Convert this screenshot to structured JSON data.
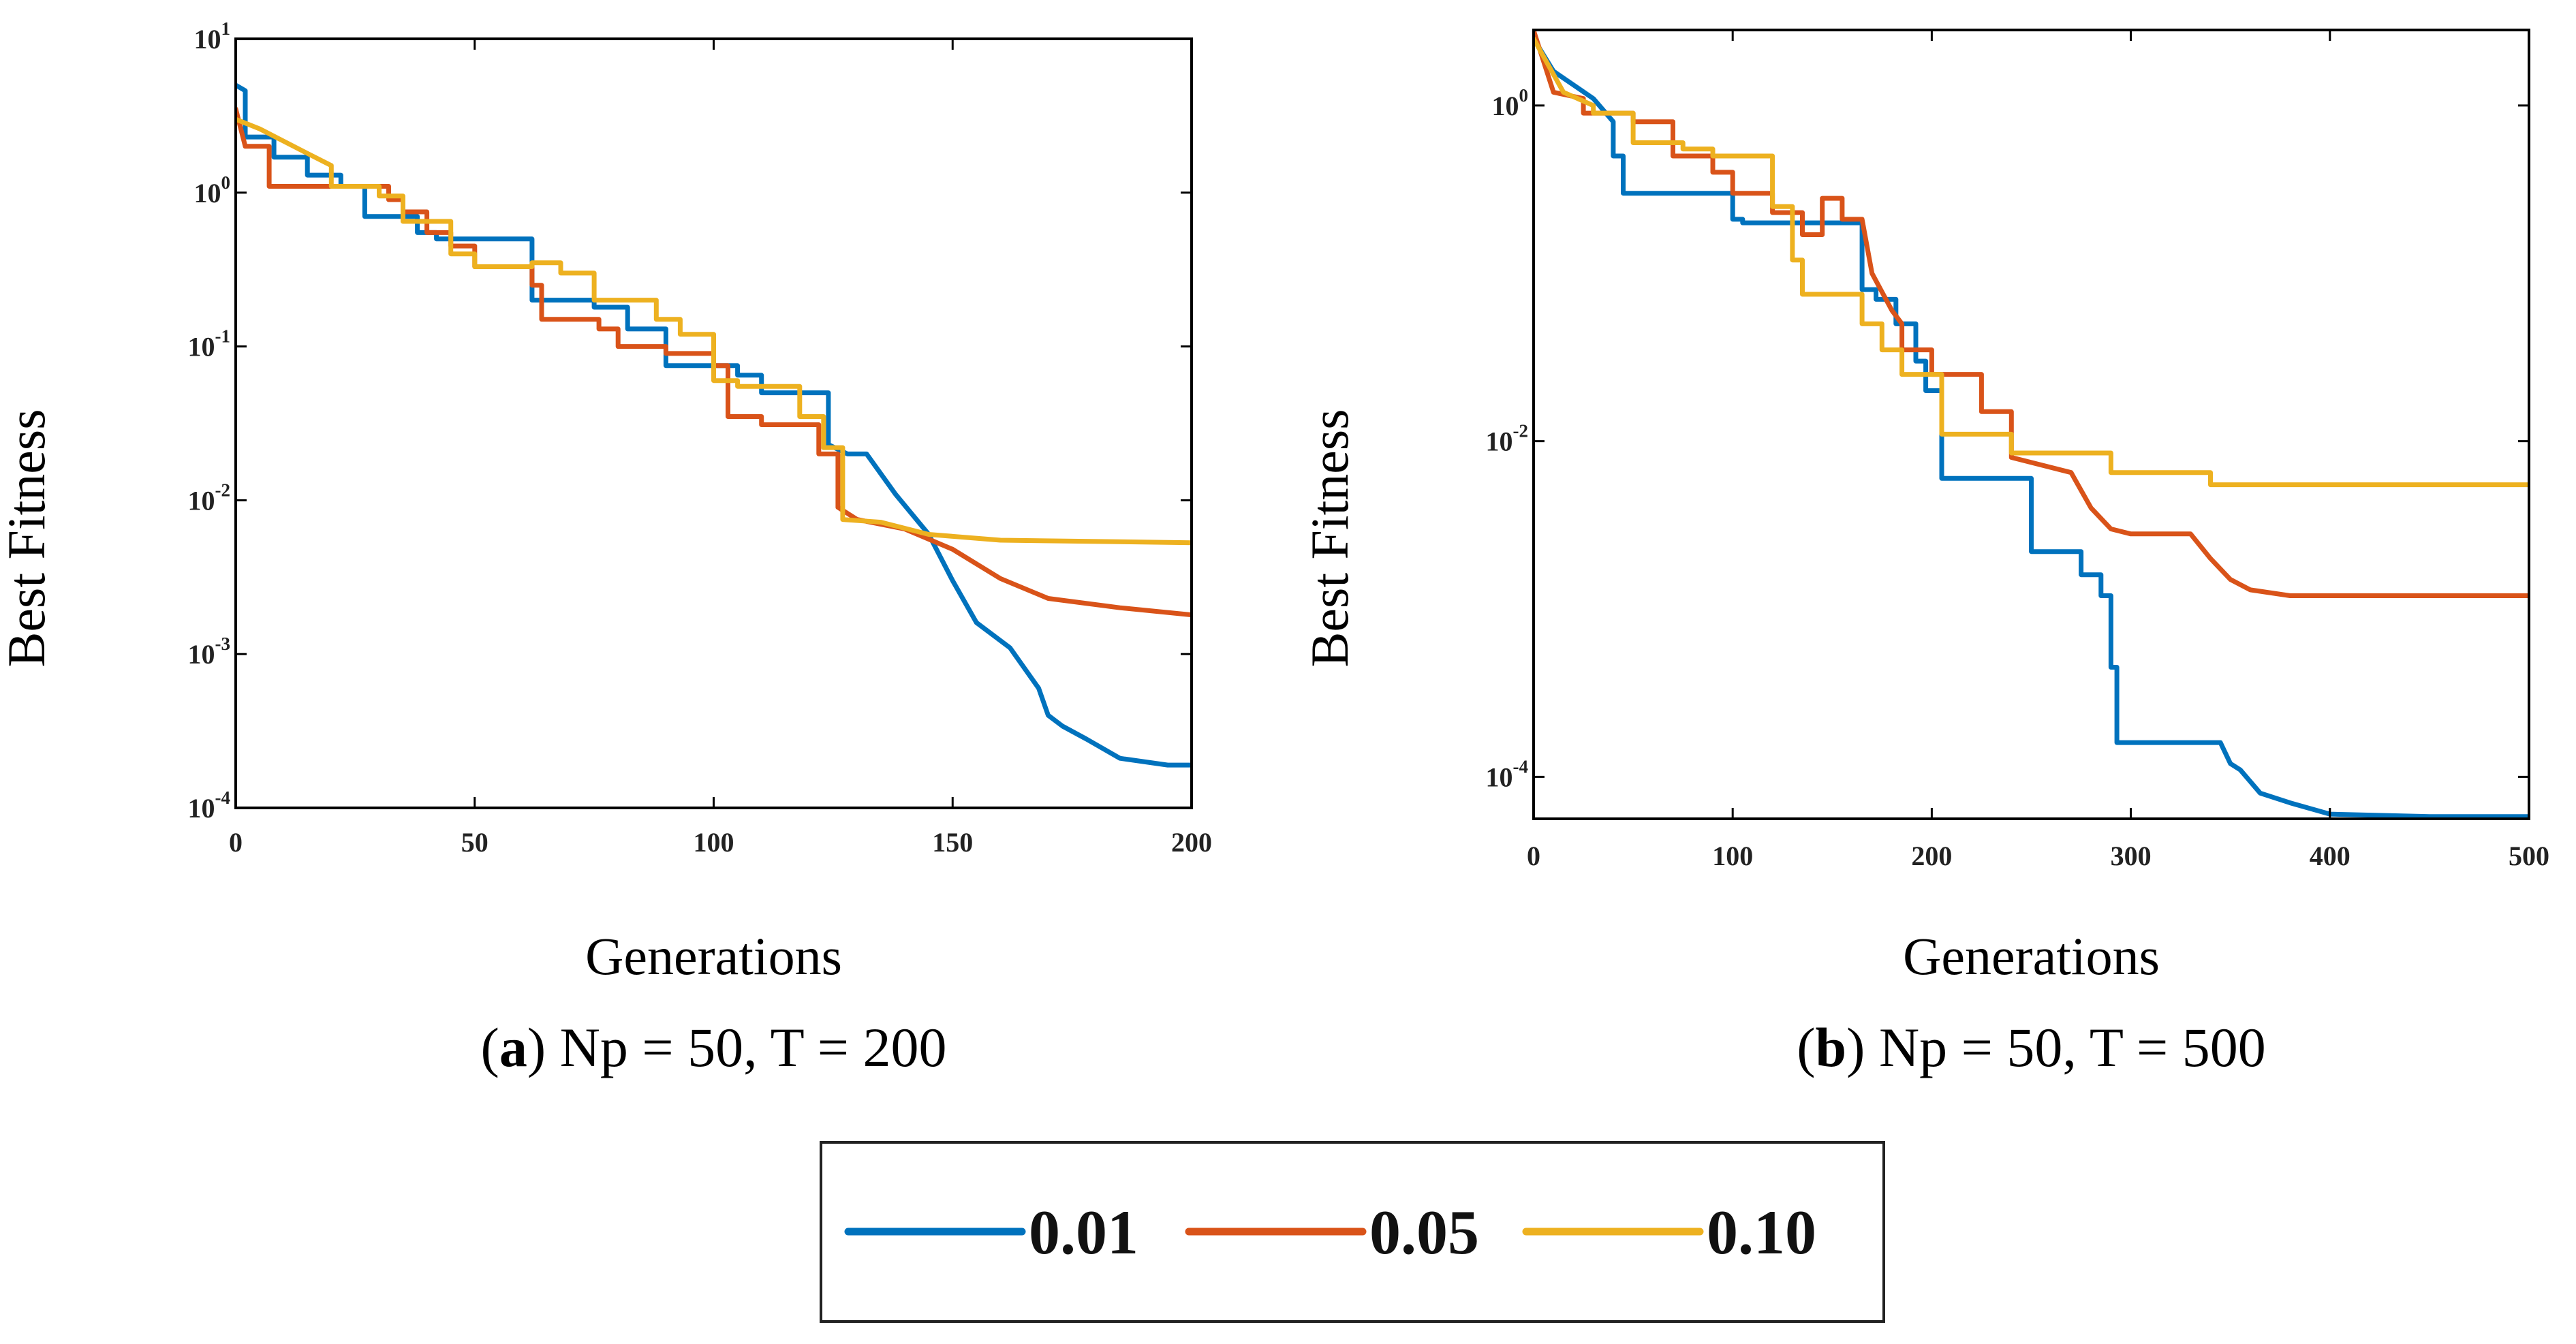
{
  "chart_data": [
    {
      "type": "line",
      "caption_letter": "a",
      "caption_rest": ") Np = 50, T = 200",
      "xlabel": "Generations",
      "ylabel": "Best Fitness",
      "xlim": [
        0,
        200
      ],
      "ylim_log10": [
        -4,
        1
      ],
      "yscale": "log",
      "xticks": [
        0,
        50,
        100,
        150,
        200
      ],
      "yticks_exp": [
        1,
        0,
        -1,
        -2,
        -3,
        -4
      ],
      "series": [
        {
          "name": "0.01",
          "color": "#0072BD",
          "x": [
            0,
            2,
            2,
            8,
            8,
            15,
            15,
            22,
            22,
            27,
            27,
            38,
            38,
            42,
            42,
            48,
            48,
            62,
            62,
            66,
            66,
            75,
            75,
            82,
            82,
            90,
            90,
            97,
            97,
            105,
            105,
            110,
            110,
            120,
            120,
            124,
            124,
            128,
            132,
            138,
            145,
            150,
            155,
            162,
            168,
            170,
            173,
            178,
            185,
            195,
            200
          ],
          "y": [
            5,
            4.6,
            2.3,
            2.3,
            1.7,
            1.7,
            1.3,
            1.3,
            1.1,
            1.1,
            0.7,
            0.7,
            0.55,
            0.55,
            0.5,
            0.5,
            0.5,
            0.5,
            0.2,
            0.2,
            0.2,
            0.2,
            0.18,
            0.18,
            0.13,
            0.13,
            0.075,
            0.075,
            0.075,
            0.075,
            0.065,
            0.065,
            0.05,
            0.05,
            0.05,
            0.05,
            0.023,
            0.02,
            0.02,
            0.011,
            0.006,
            0.003,
            0.0016,
            0.0011,
            0.0006,
            0.0004,
            0.00034,
            0.00028,
            0.00021,
            0.00019,
            0.00019
          ]
        },
        {
          "name": "0.05",
          "color": "#D95319",
          "x": [
            0,
            2,
            2,
            7,
            7,
            32,
            32,
            35,
            35,
            40,
            40,
            45,
            45,
            50,
            50,
            62,
            62,
            64,
            64,
            76,
            76,
            80,
            80,
            90,
            90,
            100,
            100,
            103,
            103,
            110,
            110,
            122,
            122,
            126,
            126,
            130,
            140,
            150,
            160,
            170,
            185,
            200
          ],
          "y": [
            3.5,
            2,
            2,
            2,
            1.1,
            1.1,
            0.9,
            0.9,
            0.75,
            0.75,
            0.55,
            0.55,
            0.45,
            0.45,
            0.33,
            0.33,
            0.25,
            0.25,
            0.15,
            0.15,
            0.13,
            0.13,
            0.1,
            0.1,
            0.09,
            0.09,
            0.075,
            0.075,
            0.035,
            0.035,
            0.031,
            0.031,
            0.02,
            0.02,
            0.009,
            0.0075,
            0.0065,
            0.0048,
            0.0031,
            0.0023,
            0.002,
            0.0018
          ]
        },
        {
          "name": "0.10",
          "color": "#EDB120",
          "x": [
            0,
            5,
            15,
            20,
            20,
            30,
            30,
            35,
            35,
            45,
            45,
            50,
            50,
            62,
            62,
            68,
            68,
            75,
            75,
            88,
            88,
            93,
            93,
            100,
            100,
            105,
            105,
            118,
            118,
            123,
            123,
            127,
            127,
            135,
            145,
            160,
            200
          ],
          "y": [
            3,
            2.6,
            1.8,
            1.5,
            1.1,
            1.1,
            0.95,
            0.95,
            0.65,
            0.65,
            0.4,
            0.4,
            0.33,
            0.33,
            0.35,
            0.35,
            0.3,
            0.3,
            0.2,
            0.2,
            0.15,
            0.15,
            0.12,
            0.12,
            0.06,
            0.06,
            0.055,
            0.055,
            0.035,
            0.035,
            0.022,
            0.022,
            0.0075,
            0.0072,
            0.006,
            0.0055,
            0.0053
          ]
        }
      ]
    },
    {
      "type": "line",
      "caption_letter": "b",
      "caption_rest": ") Np = 50, T = 500",
      "xlabel": "Generations",
      "ylabel": "Best Fitness",
      "xlim": [
        0,
        500
      ],
      "ylim_log10": [
        -4.25,
        0.45
      ],
      "yscale": "log",
      "xticks": [
        0,
        100,
        200,
        300,
        400,
        500
      ],
      "yticks_exp": [
        0,
        -2,
        -4
      ],
      "series": [
        {
          "name": "0.01",
          "color": "#0072BD",
          "x": [
            0,
            10,
            30,
            40,
            40,
            45,
            45,
            58,
            58,
            100,
            100,
            105,
            105,
            165,
            165,
            172,
            172,
            182,
            182,
            192,
            192,
            197,
            197,
            205,
            205,
            250,
            250,
            275,
            275,
            285,
            285,
            290,
            290,
            293,
            293,
            300,
            300,
            345,
            350,
            355,
            365,
            380,
            400,
            450,
            500
          ],
          "y": [
            2.5,
            1.6,
            1.1,
            0.8,
            0.5,
            0.5,
            0.3,
            0.3,
            0.3,
            0.3,
            0.21,
            0.21,
            0.2,
            0.2,
            0.08,
            0.08,
            0.07,
            0.07,
            0.05,
            0.05,
            0.03,
            0.03,
            0.02,
            0.02,
            0.006,
            0.006,
            0.0022,
            0.0022,
            0.0016,
            0.0016,
            0.0012,
            0.0012,
            0.00045,
            0.00045,
            0.00016,
            0.00016,
            0.00016,
            0.00016,
            0.00012,
            0.00011,
            8e-05,
            7e-05,
            6e-05,
            5.8e-05,
            5.8e-05
          ]
        },
        {
          "name": "0.05",
          "color": "#D95319",
          "x": [
            0,
            10,
            25,
            25,
            50,
            50,
            70,
            70,
            90,
            90,
            100,
            100,
            120,
            120,
            135,
            135,
            145,
            145,
            155,
            155,
            165,
            170,
            180,
            185,
            185,
            200,
            200,
            225,
            225,
            240,
            240,
            270,
            280,
            290,
            300,
            330,
            340,
            350,
            360,
            380,
            500
          ],
          "y": [
            2.8,
            1.2,
            1.1,
            0.9,
            0.9,
            0.8,
            0.8,
            0.5,
            0.5,
            0.4,
            0.4,
            0.3,
            0.3,
            0.23,
            0.23,
            0.17,
            0.17,
            0.28,
            0.28,
            0.21,
            0.21,
            0.1,
            0.06,
            0.05,
            0.035,
            0.035,
            0.025,
            0.025,
            0.015,
            0.015,
            0.008,
            0.0065,
            0.004,
            0.003,
            0.0028,
            0.0028,
            0.002,
            0.0015,
            0.0013,
            0.0012,
            0.0012
          ]
        },
        {
          "name": "0.10",
          "color": "#EDB120",
          "x": [
            0,
            15,
            30,
            30,
            50,
            50,
            75,
            75,
            90,
            90,
            120,
            120,
            130,
            130,
            135,
            135,
            165,
            165,
            175,
            175,
            185,
            185,
            205,
            205,
            210,
            210,
            240,
            240,
            290,
            290,
            340,
            340,
            500
          ],
          "y": [
            2.5,
            1.2,
            1,
            0.9,
            0.9,
            0.6,
            0.6,
            0.55,
            0.55,
            0.5,
            0.5,
            0.25,
            0.25,
            0.12,
            0.12,
            0.075,
            0.075,
            0.05,
            0.05,
            0.035,
            0.035,
            0.025,
            0.025,
            0.011,
            0.011,
            0.011,
            0.011,
            0.0085,
            0.0085,
            0.0065,
            0.0065,
            0.0055,
            0.0055
          ]
        }
      ]
    }
  ],
  "legend": {
    "items": [
      {
        "label": "0.01",
        "color": "#0072BD"
      },
      {
        "label": "0.05",
        "color": "#D95319"
      },
      {
        "label": "0.10",
        "color": "#EDB120"
      }
    ]
  }
}
